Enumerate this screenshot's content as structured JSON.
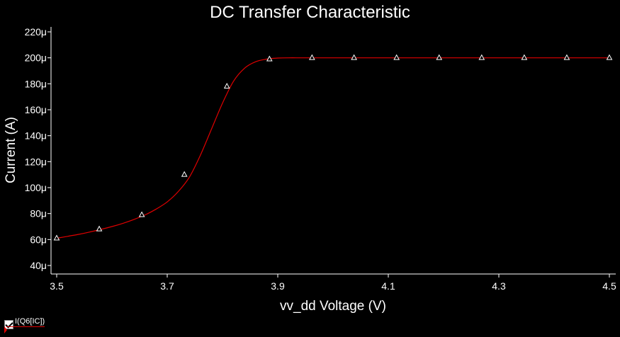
{
  "chart_data": {
    "type": "line",
    "title": "DC Transfer Characteristic",
    "xlabel": "vv_dd Voltage (V)",
    "ylabel": "Current (A)",
    "xlim": [
      3.5,
      4.5
    ],
    "ylim": [
      40,
      220
    ],
    "x_ticks": [
      3.5,
      3.7,
      3.9,
      4.1,
      4.3,
      4.5
    ],
    "x_tick_labels": [
      "3.5",
      "3.7",
      "3.9",
      "4.1",
      "4.3",
      "4.5"
    ],
    "y_ticks": [
      40,
      60,
      80,
      100,
      120,
      140,
      160,
      180,
      200,
      220
    ],
    "y_tick_labels": [
      "40μ",
      "60μ",
      "80μ",
      "100μ",
      "120μ",
      "140μ",
      "160μ",
      "180μ",
      "200μ",
      "220μ"
    ],
    "grid": false,
    "series": [
      {
        "name": "I(Q6[IC])",
        "color": "#e00000",
        "marker": "triangle",
        "x": [
          3.5,
          3.52,
          3.54,
          3.56,
          3.58,
          3.6,
          3.62,
          3.64,
          3.66,
          3.68,
          3.7,
          3.72,
          3.74,
          3.76,
          3.78,
          3.8,
          3.82,
          3.84,
          3.86,
          3.88,
          3.9,
          3.92,
          3.94,
          3.96,
          4.0,
          4.05,
          4.1,
          4.2,
          4.3,
          4.4,
          4.5
        ],
        "y": [
          61,
          62.5,
          64,
          65.8,
          67.8,
          70,
          72.5,
          75.5,
          79,
          83.5,
          89,
          97,
          108,
          125,
          145,
          165,
          182,
          192,
          197,
          199,
          199.8,
          200,
          200,
          200,
          200,
          200,
          200,
          200,
          200,
          200,
          200
        ]
      }
    ],
    "markers": {
      "x": [
        3.5,
        3.577,
        3.654,
        3.731,
        3.808,
        3.885,
        3.962,
        4.038,
        4.115,
        4.192,
        4.269,
        4.346,
        4.423,
        4.5
      ],
      "y": [
        61,
        68,
        79,
        110,
        178,
        199,
        200,
        200,
        200,
        200,
        200,
        200,
        200,
        200
      ]
    }
  },
  "legend": {
    "label": "I(Q6[IC])"
  }
}
